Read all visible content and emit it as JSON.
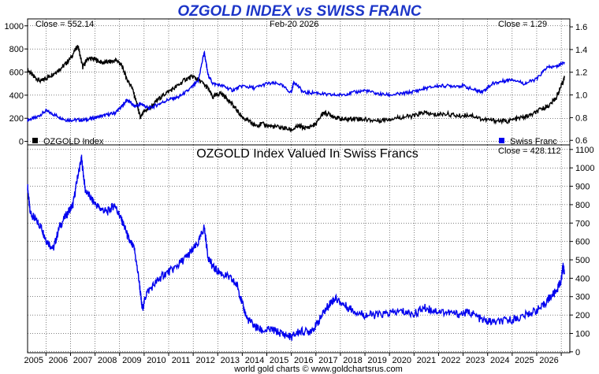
{
  "title": "OZGOLD INDEX vs SWISS FRANC",
  "footer": "world gold charts © www.goldchartsrus.com",
  "colors": {
    "title": "#1c35c8",
    "ozgold": "#000000",
    "chf": "#0000ee",
    "ratio": "#0000ee",
    "grid": "#000000"
  },
  "chart_data": [
    {
      "type": "line",
      "title": "",
      "close_left": "Close = 552.14",
      "date_label": "Feb-20  2026",
      "close_right": "Close = 1.29",
      "xlim": [
        2004.25,
        2026.35
      ],
      "ylim_left": [
        -30,
        1060
      ],
      "ylim_right": [
        0.56,
        1.67
      ],
      "y_ticks_left": [
        0,
        200,
        400,
        600,
        800,
        1000
      ],
      "y_ticks_right": [
        0.6,
        0.8,
        1.0,
        1.2,
        1.4,
        1.6
      ],
      "y_tick_labels_right": [
        "0.6",
        "0.8",
        "1.0",
        "1.2",
        "1.4",
        "1.6"
      ],
      "legend": [
        {
          "name": "OZGOLD Index",
          "color": "#000000",
          "position": "bottom-left"
        },
        {
          "name": "Swiss Franc",
          "color": "#0000ee",
          "position": "bottom-right"
        }
      ],
      "series": [
        {
          "name": "OZGOLD Index",
          "axis": "left",
          "x": [
            2004.25,
            2004.5,
            2004.8,
            2005.1,
            2005.4,
            2005.7,
            2006.0,
            2006.3,
            2006.5,
            2006.7,
            2007.0,
            2007.3,
            2007.6,
            2007.9,
            2008.1,
            2008.3,
            2008.5,
            2008.7,
            2008.85,
            2009.0,
            2009.3,
            2009.6,
            2009.9,
            2010.3,
            2010.7,
            2011.0,
            2011.3,
            2011.6,
            2011.8,
            2012.1,
            2012.4,
            2012.7,
            2013.0,
            2013.3,
            2013.5,
            2013.8,
            2014.2,
            2014.6,
            2015.0,
            2015.3,
            2015.6,
            2016.0,
            2016.3,
            2016.6,
            2016.9,
            2017.2,
            2017.6,
            2018.0,
            2018.5,
            2019.0,
            2019.5,
            2020.0,
            2020.4,
            2020.8,
            2021.3,
            2021.8,
            2022.3,
            2022.8,
            2023.3,
            2023.8,
            2024.3,
            2024.8,
            2025.2,
            2025.5,
            2025.8,
            2026.0,
            2026.13
          ],
          "y": [
            620,
            560,
            520,
            560,
            600,
            650,
            720,
            830,
            640,
            720,
            710,
            680,
            690,
            700,
            650,
            540,
            470,
            330,
            200,
            260,
            300,
            370,
            420,
            470,
            540,
            560,
            520,
            460,
            380,
            420,
            370,
            290,
            210,
            170,
            140,
            150,
            130,
            120,
            100,
            130,
            115,
            150,
            250,
            230,
            200,
            190,
            200,
            190,
            180,
            195,
            210,
            220,
            250,
            230,
            240,
            220,
            230,
            190,
            180,
            175,
            200,
            230,
            280,
            310,
            380,
            480,
            552.14
          ]
        },
        {
          "name": "Swiss Franc",
          "axis": "right",
          "x": [
            2004.25,
            2004.6,
            2005.0,
            2005.4,
            2005.8,
            2006.2,
            2006.6,
            2007.0,
            2007.4,
            2007.8,
            2008.1,
            2008.3,
            2008.6,
            2008.9,
            2009.2,
            2009.6,
            2010.0,
            2010.4,
            2010.8,
            2011.2,
            2011.45,
            2011.6,
            2011.8,
            2012.2,
            2012.6,
            2013.0,
            2013.5,
            2014.0,
            2014.5,
            2015.0,
            2015.1,
            2015.5,
            2016.0,
            2016.5,
            2017.0,
            2017.5,
            2018.0,
            2018.5,
            2019.0,
            2019.5,
            2020.0,
            2020.5,
            2021.0,
            2021.5,
            2022.0,
            2022.5,
            2022.8,
            2023.2,
            2023.6,
            2024.0,
            2024.5,
            2025.0,
            2025.4,
            2025.8,
            2026.13
          ],
          "y": [
            0.78,
            0.8,
            0.86,
            0.82,
            0.78,
            0.78,
            0.78,
            0.8,
            0.82,
            0.84,
            0.9,
            0.96,
            0.9,
            0.92,
            0.88,
            0.92,
            0.96,
            0.98,
            1.04,
            1.12,
            1.38,
            1.18,
            1.1,
            1.08,
            1.04,
            1.08,
            1.06,
            1.1,
            1.1,
            1.02,
            1.12,
            1.02,
            1.02,
            1.0,
            1.0,
            1.02,
            1.04,
            1.01,
            1.0,
            1.01,
            1.03,
            1.06,
            1.08,
            1.08,
            1.08,
            1.04,
            1.03,
            1.1,
            1.12,
            1.14,
            1.1,
            1.14,
            1.24,
            1.25,
            1.29
          ]
        }
      ]
    },
    {
      "type": "line",
      "title": "OZGOLD Index Valued In Swiss Francs",
      "close_right": "Close = 428.112",
      "xlim": [
        2004.25,
        2026.35
      ],
      "ylim": [
        -5,
        1125
      ],
      "y_ticks": [
        0,
        100,
        200,
        300,
        400,
        500,
        600,
        700,
        800,
        900,
        1000,
        1100
      ],
      "x_tick_labels": [
        "2005",
        "2006",
        "2007",
        "2008",
        "2009",
        "2010",
        "2011",
        "2012",
        "2013",
        "2014",
        "2015",
        "2016",
        "2017",
        "2018",
        "2019",
        "2020",
        "2021",
        "2022",
        "2023",
        "2024",
        "2025",
        "2026"
      ],
      "series": [
        {
          "name": "OZGOLD Index Valued In Swiss Francs",
          "x": [
            2004.25,
            2004.35,
            2004.55,
            2004.8,
            2005.0,
            2005.3,
            2005.55,
            2005.9,
            2006.1,
            2006.3,
            2006.45,
            2006.6,
            2006.9,
            2007.2,
            2007.5,
            2007.8,
            2008.0,
            2008.2,
            2008.4,
            2008.6,
            2008.8,
            2008.92,
            2009.1,
            2009.5,
            2009.8,
            2010.2,
            2010.6,
            2010.9,
            2011.2,
            2011.45,
            2011.6,
            2011.8,
            2012.1,
            2012.5,
            2012.8,
            2013.0,
            2013.2,
            2013.5,
            2013.8,
            2014.2,
            2014.6,
            2015.0,
            2015.3,
            2015.7,
            2016.0,
            2016.3,
            2016.6,
            2016.8,
            2017.2,
            2017.6,
            2018.0,
            2018.5,
            2019.0,
            2019.5,
            2020.0,
            2020.4,
            2020.8,
            2021.3,
            2021.8,
            2022.3,
            2022.8,
            2023.3,
            2023.8,
            2024.3,
            2024.8,
            2025.2,
            2025.5,
            2025.8,
            2026.0,
            2026.07,
            2026.13
          ],
          "y": [
            900,
            760,
            720,
            680,
            610,
            560,
            680,
            760,
            800,
            960,
            1050,
            880,
            820,
            780,
            760,
            800,
            740,
            680,
            600,
            560,
            380,
            230,
            320,
            380,
            420,
            450,
            500,
            540,
            590,
            680,
            520,
            460,
            430,
            400,
            360,
            260,
            180,
            140,
            115,
            120,
            100,
            80,
            110,
            110,
            140,
            210,
            270,
            290,
            250,
            220,
            200,
            200,
            210,
            220,
            205,
            240,
            225,
            215,
            205,
            215,
            170,
            160,
            170,
            185,
            215,
            240,
            290,
            330,
            390,
            470,
            428.112
          ]
        }
      ]
    }
  ]
}
